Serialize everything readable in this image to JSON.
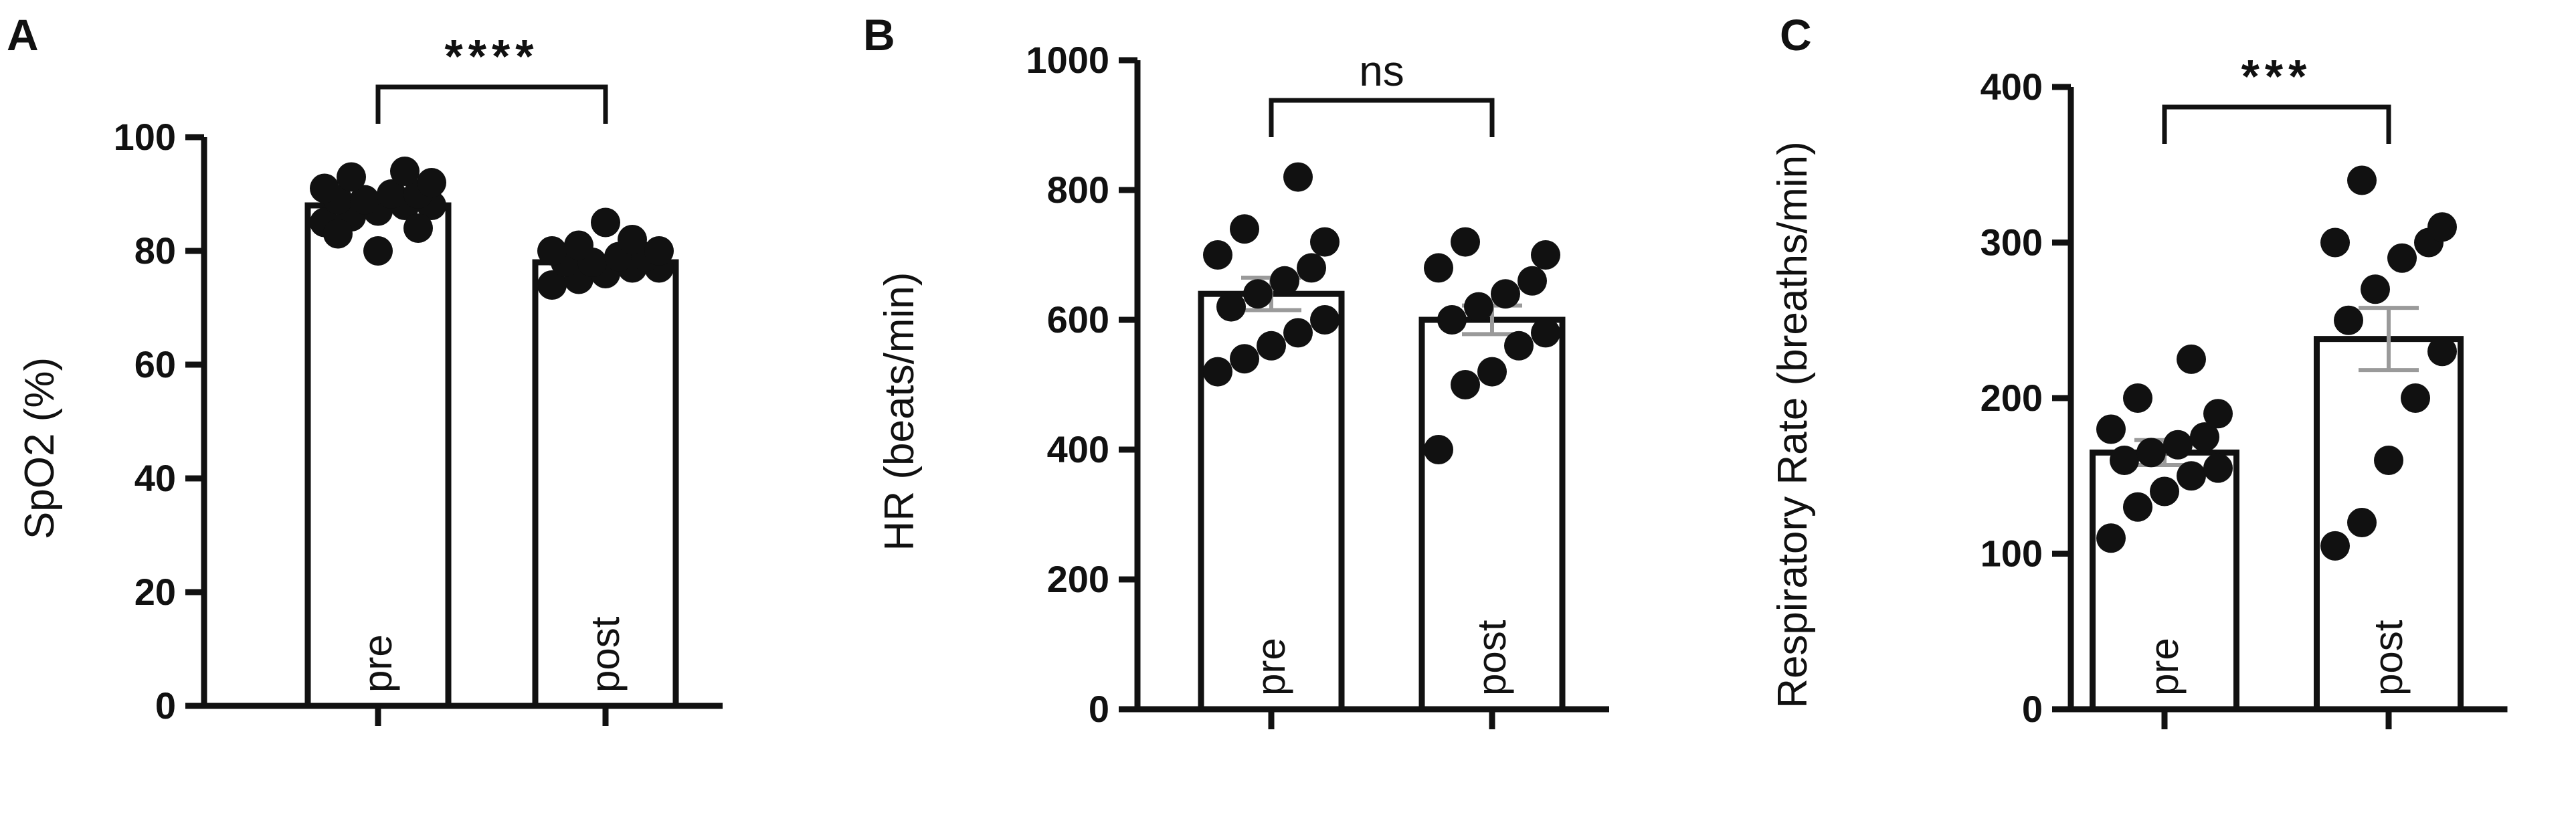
{
  "colors": {
    "ink": "#111111",
    "bar_fill": "#ffffff",
    "sem": "#9a9a9a"
  },
  "chart_data": [
    {
      "panel": "A",
      "type": "bar",
      "ylabel": "SpO2 (%)",
      "ylim": [
        0,
        100
      ],
      "yticks": [
        0,
        20,
        40,
        60,
        80,
        100
      ],
      "categories": [
        "pre",
        "post"
      ],
      "values": [
        88,
        78
      ],
      "sem": [
        1.0,
        1.0
      ],
      "points": [
        [
          85,
          86,
          87,
          88,
          88,
          89,
          89,
          90,
          90,
          91,
          92,
          93,
          94,
          80,
          83,
          84
        ],
        [
          74,
          75,
          76,
          77,
          77,
          78,
          78,
          79,
          79,
          80,
          80,
          81,
          82,
          85
        ]
      ],
      "significance": "****",
      "grid": false
    },
    {
      "panel": "B",
      "type": "bar",
      "ylabel": "HR (beats/min)",
      "ylim": [
        0,
        1000
      ],
      "yticks": [
        0,
        200,
        400,
        600,
        800,
        1000
      ],
      "categories": [
        "pre",
        "post"
      ],
      "values": [
        640,
        600
      ],
      "sem": [
        25,
        22
      ],
      "points": [
        [
          520,
          540,
          560,
          580,
          600,
          620,
          640,
          660,
          680,
          700,
          720,
          740,
          820
        ],
        [
          400,
          500,
          520,
          560,
          580,
          600,
          620,
          640,
          660,
          680,
          700,
          720
        ]
      ],
      "significance": "ns",
      "grid": false
    },
    {
      "panel": "C",
      "type": "bar",
      "ylabel": "Respiratory Rate (breaths/min)",
      "ylim": [
        0,
        400
      ],
      "yticks": [
        0,
        100,
        200,
        300,
        400
      ],
      "categories": [
        "pre",
        "post"
      ],
      "values": [
        165,
        238
      ],
      "sem": [
        8,
        20
      ],
      "points": [
        [
          110,
          130,
          140,
          150,
          155,
          160,
          165,
          170,
          175,
          180,
          190,
          200,
          225
        ],
        [
          105,
          120,
          160,
          200,
          230,
          250,
          270,
          290,
          300,
          300,
          310,
          340
        ]
      ],
      "significance": "***",
      "grid": false
    }
  ]
}
